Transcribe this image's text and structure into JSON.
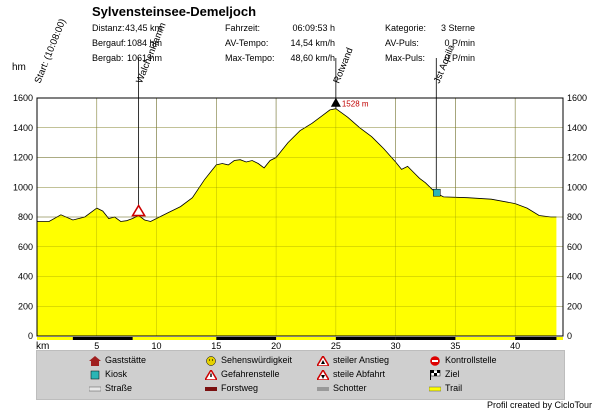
{
  "title": "Sylvensteinsee-Demeljoch",
  "stats": [
    {
      "label": "Distanz:",
      "value": "43,45 km"
    },
    {
      "label": "Bergauf:",
      "value": "1084 hm"
    },
    {
      "label": "Bergab:",
      "value": "1061 hm"
    },
    {
      "label": "Fahrzeit:",
      "value": "06:09:53 h"
    },
    {
      "label": "AV-Tempo:",
      "value": "14,54 km/h"
    },
    {
      "label": "Max-Tempo:",
      "value": "48,60 km/h"
    },
    {
      "label": "Kategorie:",
      "value": "3 Sterne"
    },
    {
      "label": "AV-Puls:",
      "value": "0 P/min"
    },
    {
      "label": "Max-Puls:",
      "value": "0 P/min"
    }
  ],
  "legend": [
    {
      "label": "Gaststätte",
      "icon": "house-icon"
    },
    {
      "label": "Sehenswürdigkeit",
      "icon": "smiley-icon"
    },
    {
      "label": "steiler Anstieg",
      "icon": "warning-up-icon"
    },
    {
      "label": "Kontrollstelle",
      "icon": "stop-icon"
    },
    {
      "label": "Kiosk",
      "icon": "kiosk-icon"
    },
    {
      "label": "Gefahrenstelle",
      "icon": "warning-icon"
    },
    {
      "label": "steile Abfahrt",
      "icon": "warning-down-icon"
    },
    {
      "label": "Ziel",
      "icon": "flag-icon"
    },
    {
      "label": "Straße",
      "icon": "road-icon"
    },
    {
      "label": "Forstweg",
      "icon": "forest-road-icon"
    },
    {
      "label": "Schotter",
      "icon": "gravel-icon"
    },
    {
      "label": "Trail",
      "icon": "trail-icon"
    }
  ],
  "credit": "Profil created by CicloTour",
  "colors": {
    "fill": "#ffff00",
    "outline": "#000000",
    "legend_bg": "#cfcfcf",
    "peak_label": "#c00000"
  },
  "chart_data": {
    "type": "area",
    "xlabel": "km",
    "ylabel": "hm",
    "xlim": [
      0,
      44
    ],
    "ylim": [
      0,
      1600
    ],
    "x_ticks": [
      5,
      10,
      15,
      20,
      25,
      30,
      35,
      40
    ],
    "y_ticks": [
      0,
      200,
      400,
      600,
      800,
      1000,
      1200,
      1400,
      1600
    ],
    "grid": true,
    "series": [
      {
        "x": [
          0,
          1,
          2,
          3,
          4,
          5,
          5.5,
          6,
          6.5,
          7,
          7.5,
          8,
          8.5,
          9,
          9.5,
          10,
          10.5,
          11,
          12,
          13,
          14,
          14.5,
          15,
          15.5,
          16,
          16.5,
          17,
          17.5,
          18,
          18.5,
          19,
          19.5,
          20,
          21,
          22,
          23,
          24,
          24.5,
          25,
          25.5,
          26,
          27,
          28,
          29,
          30,
          30.5,
          31,
          31.5,
          32,
          32.5,
          33,
          33.4,
          34,
          36,
          38,
          40,
          41,
          42,
          43,
          43.45
        ],
        "y": [
          770,
          770,
          815,
          780,
          800,
          860,
          840,
          790,
          800,
          770,
          775,
          790,
          810,
          780,
          770,
          790,
          810,
          830,
          870,
          930,
          1050,
          1100,
          1150,
          1160,
          1150,
          1180,
          1185,
          1170,
          1180,
          1160,
          1130,
          1180,
          1200,
          1300,
          1380,
          1430,
          1490,
          1520,
          1528,
          1500,
          1470,
          1400,
          1340,
          1260,
          1170,
          1120,
          1140,
          1100,
          1060,
          1030,
          990,
          960,
          935,
          930,
          920,
          890,
          860,
          810,
          800,
          800
        ]
      }
    ],
    "trail_bars": [
      [
        3,
        8
      ],
      [
        15,
        20
      ],
      [
        25,
        30
      ],
      [
        30,
        35
      ],
      [
        40,
        43.45
      ]
    ],
    "annotations": [
      {
        "label": "Start: (10:08:00)",
        "x": 0,
        "y": 775
      },
      {
        "label": "Walchenklamm",
        "x": 8.5,
        "y": 810,
        "icon": "warning-icon"
      },
      {
        "label": "Rotwand",
        "x": 25,
        "y": 1528,
        "icon": "peak-icon"
      },
      {
        "label": "Jst Aquila",
        "x": 33.4,
        "y": 960,
        "icon": "kiosk-icon"
      }
    ],
    "peak_label": "1528 m"
  }
}
